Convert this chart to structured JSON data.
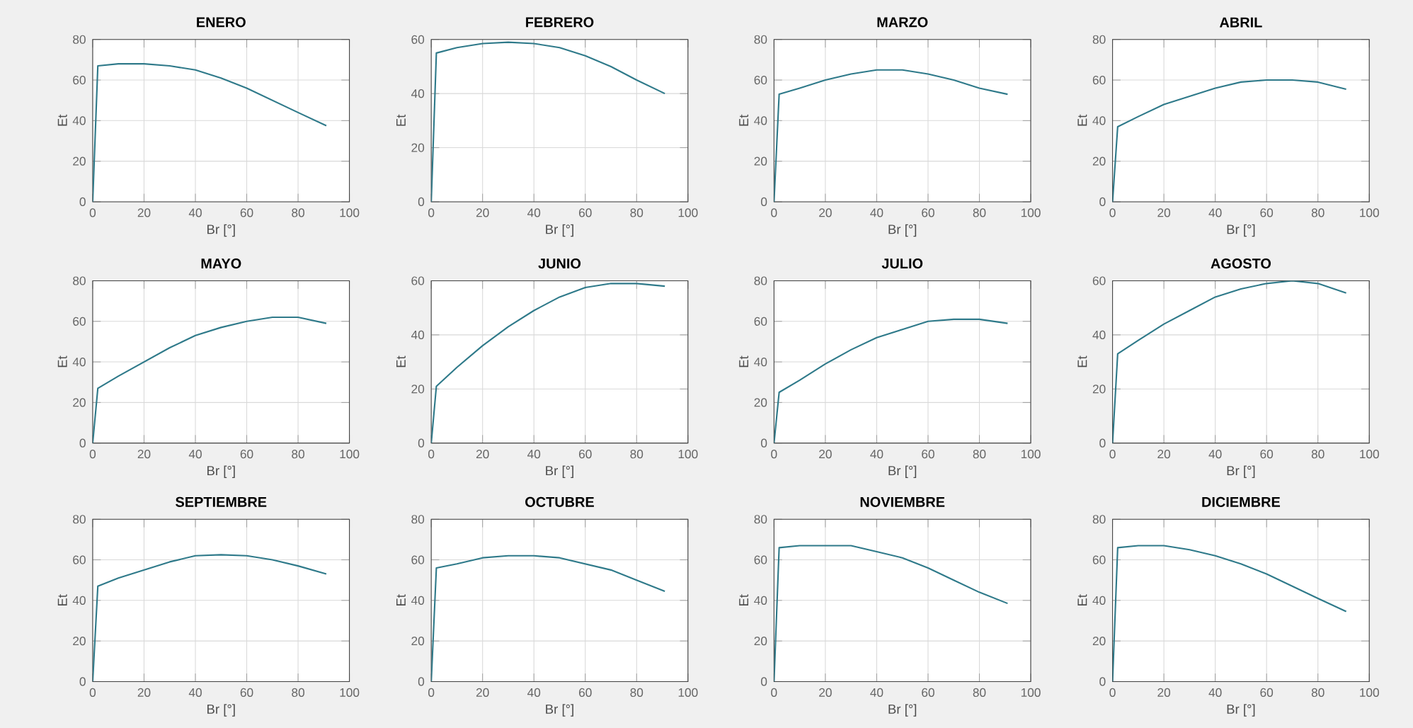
{
  "chart_data": [
    {
      "type": "line",
      "title": "ENERO",
      "xlabel": "Br [°]",
      "ylabel": "Et",
      "x": [
        0,
        2,
        10,
        20,
        30,
        40,
        50,
        60,
        70,
        80,
        91
      ],
      "series": [
        {
          "color": "#2f7a8a",
          "values": [
            0,
            67,
            68,
            68,
            67,
            65,
            61,
            56,
            50,
            44,
            37.5
          ]
        }
      ],
      "xlim": [
        0,
        100
      ],
      "ylim": [
        0,
        80
      ],
      "xticks": [
        0,
        20,
        40,
        60,
        80,
        100
      ],
      "yticks": [
        0,
        20,
        40,
        60,
        80
      ],
      "grid": true
    },
    {
      "type": "line",
      "title": "FEBRERO",
      "xlabel": "Br [°]",
      "ylabel": "Et",
      "x": [
        0,
        2,
        10,
        20,
        30,
        40,
        50,
        60,
        70,
        80,
        91
      ],
      "series": [
        {
          "color": "#2f7a8a",
          "values": [
            0,
            55,
            57,
            58.5,
            59,
            58.5,
            57,
            54,
            50,
            45,
            40
          ]
        }
      ],
      "xlim": [
        0,
        100
      ],
      "ylim": [
        0,
        60
      ],
      "xticks": [
        0,
        20,
        40,
        60,
        80,
        100
      ],
      "yticks": [
        0,
        20,
        40,
        60
      ],
      "grid": true
    },
    {
      "type": "line",
      "title": "MARZO",
      "xlabel": "Br [°]",
      "ylabel": "Et",
      "x": [
        0,
        2,
        10,
        20,
        30,
        40,
        50,
        60,
        70,
        80,
        91
      ],
      "series": [
        {
          "color": "#2f7a8a",
          "values": [
            0,
            53,
            56,
            60,
            63,
            65,
            65,
            63,
            60,
            56,
            53
          ]
        }
      ],
      "xlim": [
        0,
        100
      ],
      "ylim": [
        0,
        80
      ],
      "xticks": [
        0,
        20,
        40,
        60,
        80,
        100
      ],
      "yticks": [
        0,
        20,
        40,
        60,
        80
      ],
      "grid": true
    },
    {
      "type": "line",
      "title": "ABRIL",
      "xlabel": "Br [°]",
      "ylabel": "Et",
      "x": [
        0,
        2,
        10,
        20,
        30,
        40,
        50,
        60,
        70,
        80,
        91
      ],
      "series": [
        {
          "color": "#2f7a8a",
          "values": [
            0,
            37,
            42,
            48,
            52,
            56,
            59,
            60,
            60,
            59,
            55.5
          ]
        }
      ],
      "xlim": [
        0,
        100
      ],
      "ylim": [
        0,
        80
      ],
      "xticks": [
        0,
        20,
        40,
        60,
        80,
        100
      ],
      "yticks": [
        0,
        20,
        40,
        60,
        80
      ],
      "grid": true
    },
    {
      "type": "line",
      "title": "MAYO",
      "xlabel": "Br [°]",
      "ylabel": "Et",
      "x": [
        0,
        2,
        10,
        20,
        30,
        40,
        50,
        60,
        70,
        80,
        91
      ],
      "series": [
        {
          "color": "#2f7a8a",
          "values": [
            0,
            27,
            33,
            40,
            47,
            53,
            57,
            60,
            62,
            62,
            59
          ]
        }
      ],
      "xlim": [
        0,
        100
      ],
      "ylim": [
        0,
        80
      ],
      "xticks": [
        0,
        20,
        40,
        60,
        80,
        100
      ],
      "yticks": [
        0,
        20,
        40,
        60,
        80
      ],
      "grid": true
    },
    {
      "type": "line",
      "title": "JUNIO",
      "xlabel": "Br [°]",
      "ylabel": "Et",
      "x": [
        0,
        2,
        10,
        20,
        30,
        40,
        50,
        60,
        70,
        80,
        91
      ],
      "series": [
        {
          "color": "#2f7a8a",
          "values": [
            0,
            21,
            28,
            36,
            43,
            49,
            54,
            57.5,
            59,
            59,
            58
          ]
        }
      ],
      "xlim": [
        0,
        100
      ],
      "ylim": [
        0,
        60
      ],
      "xticks": [
        0,
        20,
        40,
        60,
        80,
        100
      ],
      "yticks": [
        0,
        20,
        40,
        60
      ],
      "grid": true
    },
    {
      "type": "line",
      "title": "JULIO",
      "xlabel": "Br [°]",
      "ylabel": "Et",
      "x": [
        0,
        2,
        10,
        20,
        30,
        40,
        50,
        60,
        70,
        80,
        91
      ],
      "series": [
        {
          "color": "#2f7a8a",
          "values": [
            0,
            25,
            31,
            39,
            46,
            52,
            56,
            60,
            61,
            61,
            59
          ]
        }
      ],
      "xlim": [
        0,
        100
      ],
      "ylim": [
        0,
        80
      ],
      "xticks": [
        0,
        20,
        40,
        60,
        80,
        100
      ],
      "yticks": [
        0,
        20,
        40,
        60,
        80
      ],
      "grid": true
    },
    {
      "type": "line",
      "title": "AGOSTO",
      "xlabel": "Br [°]",
      "ylabel": "Et",
      "x": [
        0,
        2,
        10,
        20,
        30,
        40,
        50,
        60,
        70,
        80,
        91
      ],
      "series": [
        {
          "color": "#2f7a8a",
          "values": [
            0,
            33,
            38,
            44,
            49,
            54,
            57,
            59,
            60,
            59,
            55.5
          ]
        }
      ],
      "xlim": [
        0,
        100
      ],
      "ylim": [
        0,
        60
      ],
      "xticks": [
        0,
        20,
        40,
        60,
        80,
        100
      ],
      "yticks": [
        0,
        20,
        40,
        60
      ],
      "grid": true
    },
    {
      "type": "line",
      "title": "SEPTIEMBRE",
      "xlabel": "Br [°]",
      "ylabel": "Et",
      "x": [
        0,
        2,
        10,
        20,
        30,
        40,
        50,
        60,
        70,
        80,
        91
      ],
      "series": [
        {
          "color": "#2f7a8a",
          "values": [
            0,
            47,
            51,
            55,
            59,
            62,
            62.5,
            62,
            60,
            57,
            53
          ]
        }
      ],
      "xlim": [
        0,
        100
      ],
      "ylim": [
        0,
        80
      ],
      "xticks": [
        0,
        20,
        40,
        60,
        80,
        100
      ],
      "yticks": [
        0,
        20,
        40,
        60,
        80
      ],
      "grid": true
    },
    {
      "type": "line",
      "title": "OCTUBRE",
      "xlabel": "Br [°]",
      "ylabel": "Et",
      "x": [
        0,
        2,
        10,
        20,
        30,
        40,
        50,
        60,
        70,
        80,
        91
      ],
      "series": [
        {
          "color": "#2f7a8a",
          "values": [
            0,
            56,
            58,
            61,
            62,
            62,
            61,
            58,
            55,
            50,
            44.5
          ]
        }
      ],
      "xlim": [
        0,
        100
      ],
      "ylim": [
        0,
        80
      ],
      "xticks": [
        0,
        20,
        40,
        60,
        80,
        100
      ],
      "yticks": [
        0,
        20,
        40,
        60,
        80
      ],
      "grid": true
    },
    {
      "type": "line",
      "title": "NOVIEMBRE",
      "xlabel": "Br [°]",
      "ylabel": "Et",
      "x": [
        0,
        2,
        10,
        20,
        30,
        40,
        50,
        60,
        70,
        80,
        91
      ],
      "series": [
        {
          "color": "#2f7a8a",
          "values": [
            0,
            66,
            67,
            67,
            67,
            64,
            61,
            56,
            50,
            44,
            38.5
          ]
        }
      ],
      "xlim": [
        0,
        100
      ],
      "ylim": [
        0,
        80
      ],
      "xticks": [
        0,
        20,
        40,
        60,
        80,
        100
      ],
      "yticks": [
        0,
        20,
        40,
        60,
        80
      ],
      "grid": true
    },
    {
      "type": "line",
      "title": "DICIEMBRE",
      "xlabel": "Br [°]",
      "ylabel": "Et",
      "x": [
        0,
        2,
        10,
        20,
        30,
        40,
        50,
        60,
        70,
        80,
        91
      ],
      "series": [
        {
          "color": "#2f7a8a",
          "values": [
            0,
            66,
            67,
            67,
            65,
            62,
            58,
            53,
            47,
            41,
            34.5
          ]
        }
      ],
      "xlim": [
        0,
        100
      ],
      "ylim": [
        0,
        80
      ],
      "xticks": [
        0,
        20,
        40,
        60,
        80,
        100
      ],
      "yticks": [
        0,
        20,
        40,
        60,
        80
      ],
      "grid": true
    }
  ]
}
